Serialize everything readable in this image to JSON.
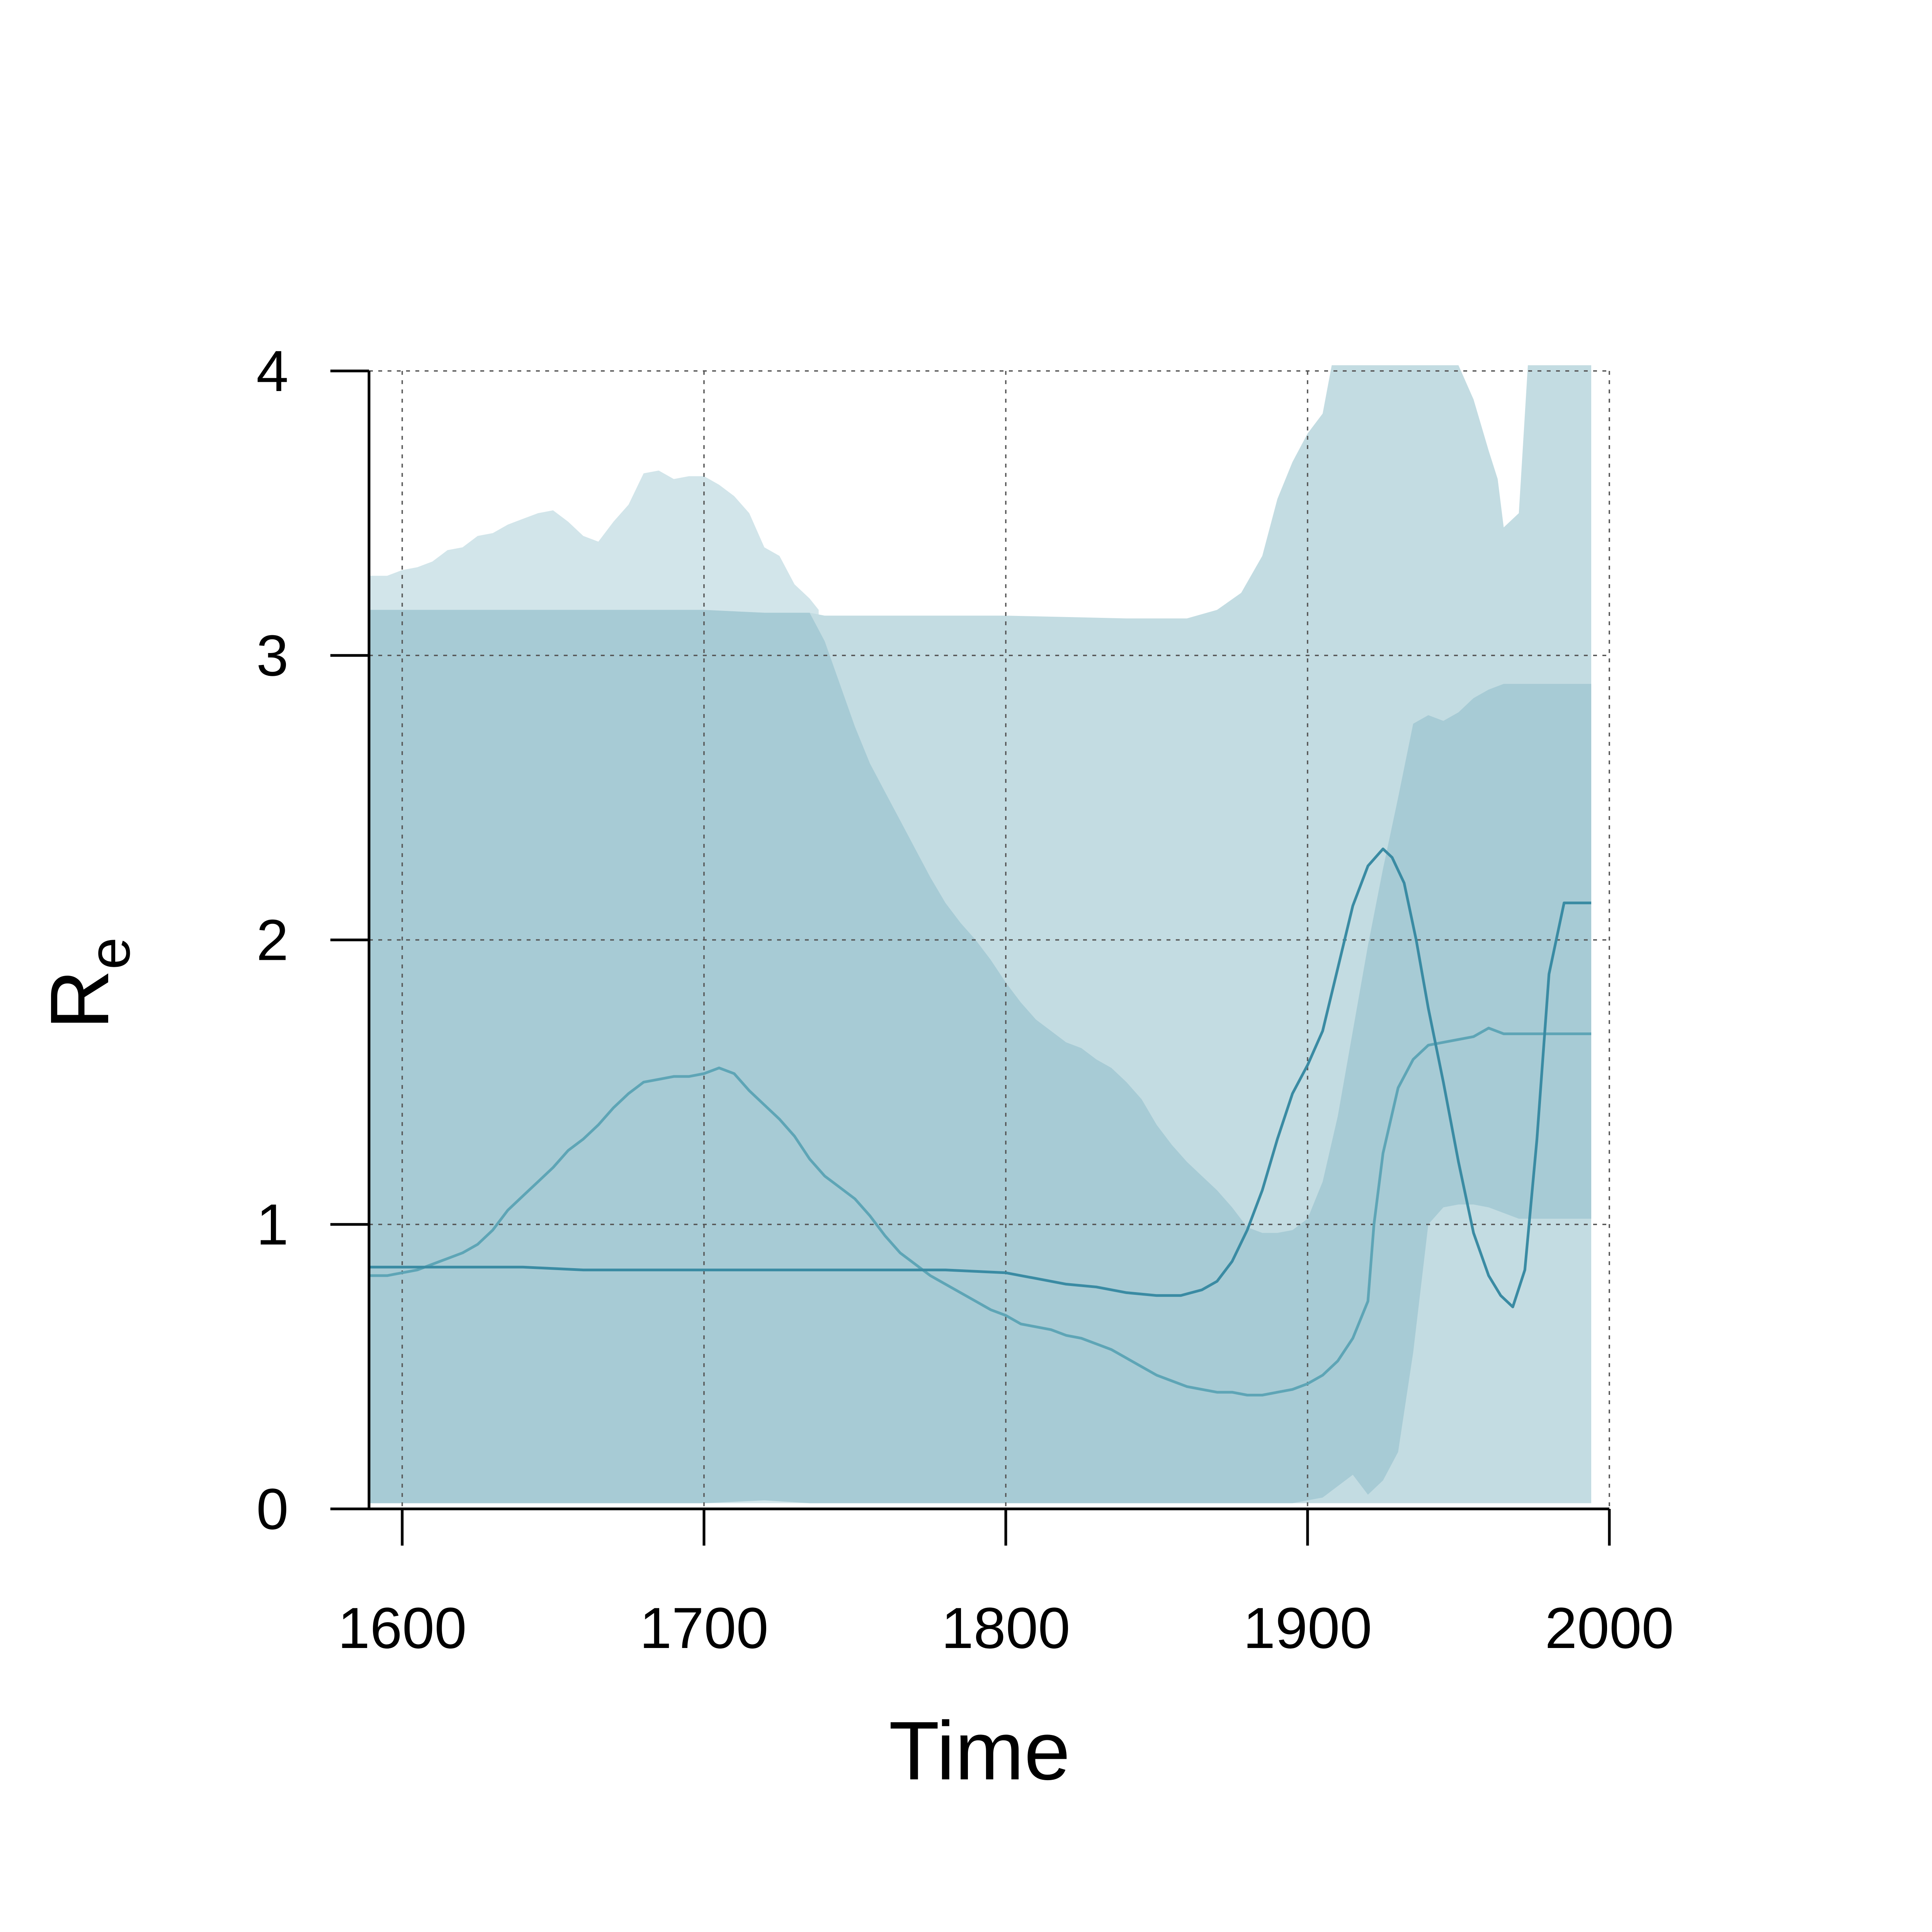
{
  "chart_data": {
    "type": "area",
    "xlabel": "Time",
    "ylabel": "R",
    "ylabel_subscript": "e",
    "xlim": [
      1589,
      2000
    ],
    "ylim": [
      0,
      4
    ],
    "x_ticks": [
      "1600",
      "1700",
      "1800",
      "1900",
      "2000"
    ],
    "y_ticks": [
      "0",
      "1",
      "2",
      "3",
      "4"
    ],
    "grid": true,
    "colors": {
      "band_light": "#d2e5ea",
      "band_mid": "#c3dce2",
      "band_dark": "#a7cbd5",
      "line_dark": "#3a8ba3",
      "line_light": "#5ea5b6",
      "grid": "#555555",
      "axis": "#000000"
    },
    "series": [
      {
        "kind": "band",
        "color_key": "band_light",
        "x": [
          1589,
          1595,
          1600,
          1605,
          1610,
          1615,
          1620,
          1625,
          1630,
          1635,
          1640,
          1645,
          1650,
          1655,
          1660,
          1665,
          1670,
          1675,
          1680,
          1685,
          1690,
          1695,
          1700,
          1705,
          1710,
          1715,
          1720,
          1725,
          1730,
          1735,
          1738
        ],
        "upper": [
          3.28,
          3.28,
          3.3,
          3.31,
          3.33,
          3.37,
          3.38,
          3.42,
          3.43,
          3.46,
          3.48,
          3.5,
          3.51,
          3.47,
          3.42,
          3.4,
          3.47,
          3.53,
          3.64,
          3.65,
          3.62,
          3.63,
          3.63,
          3.6,
          3.56,
          3.5,
          3.38,
          3.35,
          3.25,
          3.2,
          3.16
        ],
        "lower": [
          0.02,
          0.02,
          0.02,
          0.02,
          0.02,
          0.02,
          0.02,
          0.02,
          0.02,
          0.02,
          0.02,
          0.02,
          0.02,
          0.02,
          0.02,
          0.02,
          0.02,
          0.02,
          0.02,
          0.02,
          0.02,
          0.02,
          0.02,
          0.02,
          0.02,
          0.02,
          0.02,
          0.02,
          0.02,
          0.02,
          0.02
        ]
      },
      {
        "kind": "band",
        "color_key": "band_mid",
        "x": [
          1589,
          1600,
          1620,
          1660,
          1700,
          1720,
          1735,
          1740,
          1760,
          1800,
          1840,
          1850,
          1860,
          1870,
          1878,
          1885,
          1890,
          1895,
          1900,
          1905,
          1908,
          1920,
          1940,
          1950,
          1955,
          1960,
          1963,
          1965,
          1970,
          1973,
          1975,
          1990,
          1994
        ],
        "upper": [
          3.16,
          3.16,
          3.16,
          3.16,
          3.16,
          3.15,
          3.15,
          3.14,
          3.14,
          3.14,
          3.13,
          3.13,
          3.13,
          3.16,
          3.22,
          3.35,
          3.55,
          3.68,
          3.78,
          3.85,
          4.02,
          4.02,
          4.02,
          4.02,
          3.9,
          3.72,
          3.62,
          3.45,
          3.5,
          4.02,
          4.02,
          4.02,
          4.02
        ],
        "lower": [
          0.02,
          0.02,
          0.02,
          0.02,
          0.02,
          0.03,
          0.02,
          0.02,
          0.02,
          0.02,
          0.02,
          0.02,
          0.02,
          0.02,
          0.02,
          0.02,
          0.02,
          0.02,
          0.02,
          0.02,
          0.02,
          0.02,
          0.02,
          0.02,
          0.02,
          0.02,
          0.02,
          0.02,
          0.02,
          0.02,
          0.02,
          0.02,
          0.02
        ]
      },
      {
        "kind": "band",
        "color_key": "band_dark",
        "x": [
          1589,
          1600,
          1620,
          1660,
          1700,
          1720,
          1735,
          1740,
          1745,
          1750,
          1755,
          1760,
          1765,
          1770,
          1775,
          1780,
          1785,
          1790,
          1795,
          1800,
          1805,
          1810,
          1815,
          1820,
          1825,
          1830,
          1835,
          1840,
          1845,
          1850,
          1855,
          1860,
          1865,
          1870,
          1875,
          1880,
          1885,
          1890,
          1895,
          1900,
          1905,
          1910,
          1915,
          1920,
          1925,
          1930,
          1935,
          1940,
          1945,
          1950,
          1955,
          1960,
          1965,
          1970,
          1975,
          1980,
          1985,
          1990,
          1994
        ],
        "upper": [
          3.16,
          3.16,
          3.16,
          3.16,
          3.16,
          3.15,
          3.15,
          3.05,
          2.9,
          2.75,
          2.62,
          2.52,
          2.42,
          2.32,
          2.22,
          2.13,
          2.06,
          2.0,
          1.93,
          1.85,
          1.78,
          1.72,
          1.68,
          1.64,
          1.62,
          1.58,
          1.55,
          1.5,
          1.44,
          1.35,
          1.28,
          1.22,
          1.17,
          1.12,
          1.06,
          0.99,
          0.97,
          0.97,
          0.98,
          1.02,
          1.15,
          1.38,
          1.68,
          1.98,
          2.25,
          2.5,
          2.76,
          2.79,
          2.77,
          2.8,
          2.85,
          2.88,
          2.9,
          2.9,
          2.9,
          2.9,
          2.9,
          2.9,
          2.9
        ],
        "lower": [
          0.02,
          0.02,
          0.02,
          0.02,
          0.02,
          0.03,
          0.02,
          0.02,
          0.02,
          0.02,
          0.02,
          0.02,
          0.02,
          0.02,
          0.02,
          0.02,
          0.02,
          0.02,
          0.02,
          0.02,
          0.02,
          0.02,
          0.02,
          0.02,
          0.02,
          0.02,
          0.02,
          0.02,
          0.02,
          0.02,
          0.02,
          0.02,
          0.02,
          0.02,
          0.02,
          0.02,
          0.02,
          0.02,
          0.02,
          0.03,
          0.04,
          0.08,
          0.12,
          0.05,
          0.1,
          0.2,
          0.55,
          1.0,
          1.06,
          1.07,
          1.07,
          1.06,
          1.04,
          1.02,
          1.02,
          1.02,
          1.02,
          1.02,
          1.02
        ]
      },
      {
        "kind": "line",
        "color_key": "line_light",
        "x": [
          1589,
          1595,
          1600,
          1605,
          1610,
          1615,
          1620,
          1625,
          1630,
          1635,
          1640,
          1645,
          1650,
          1655,
          1660,
          1665,
          1670,
          1675,
          1680,
          1685,
          1690,
          1695,
          1700,
          1705,
          1710,
          1715,
          1720,
          1725,
          1730,
          1735,
          1740,
          1745,
          1750,
          1755,
          1760,
          1765,
          1770,
          1775,
          1780,
          1785,
          1790,
          1795,
          1800,
          1805,
          1810,
          1815,
          1820,
          1825,
          1830,
          1835,
          1840,
          1845,
          1850,
          1855,
          1860,
          1865,
          1870,
          1875,
          1880,
          1885,
          1890,
          1895,
          1900,
          1905,
          1910,
          1915,
          1920,
          1922,
          1925,
          1930,
          1935,
          1940,
          1945,
          1950,
          1955,
          1960,
          1965,
          1970,
          1975,
          1980,
          1985,
          1990,
          1994
        ],
        "y": [
          0.82,
          0.82,
          0.83,
          0.84,
          0.86,
          0.88,
          0.9,
          0.93,
          0.98,
          1.05,
          1.1,
          1.15,
          1.2,
          1.26,
          1.3,
          1.35,
          1.41,
          1.46,
          1.5,
          1.51,
          1.52,
          1.52,
          1.53,
          1.55,
          1.53,
          1.47,
          1.42,
          1.37,
          1.31,
          1.23,
          1.17,
          1.13,
          1.09,
          1.03,
          0.96,
          0.9,
          0.86,
          0.82,
          0.79,
          0.76,
          0.73,
          0.7,
          0.68,
          0.65,
          0.64,
          0.63,
          0.61,
          0.6,
          0.58,
          0.56,
          0.53,
          0.5,
          0.47,
          0.45,
          0.43,
          0.42,
          0.41,
          0.41,
          0.4,
          0.4,
          0.41,
          0.42,
          0.44,
          0.47,
          0.52,
          0.6,
          0.73,
          1.0,
          1.25,
          1.48,
          1.58,
          1.63,
          1.64,
          1.65,
          1.66,
          1.69,
          1.67,
          1.67,
          1.67,
          1.67,
          1.67,
          1.67,
          1.67
        ]
      },
      {
        "kind": "line",
        "color_key": "line_dark",
        "x": [
          1589,
          1600,
          1620,
          1640,
          1660,
          1680,
          1700,
          1720,
          1740,
          1760,
          1780,
          1800,
          1805,
          1810,
          1820,
          1830,
          1840,
          1850,
          1858,
          1865,
          1870,
          1875,
          1880,
          1885,
          1890,
          1895,
          1900,
          1905,
          1910,
          1915,
          1920,
          1925,
          1928,
          1932,
          1936,
          1940,
          1945,
          1950,
          1955,
          1960,
          1964,
          1968,
          1972,
          1976,
          1980,
          1985,
          1990,
          1994
        ],
        "y": [
          0.85,
          0.85,
          0.85,
          0.85,
          0.84,
          0.84,
          0.84,
          0.84,
          0.84,
          0.84,
          0.84,
          0.83,
          0.82,
          0.81,
          0.79,
          0.78,
          0.76,
          0.75,
          0.75,
          0.77,
          0.8,
          0.87,
          0.98,
          1.12,
          1.3,
          1.46,
          1.56,
          1.68,
          1.9,
          2.12,
          2.26,
          2.32,
          2.29,
          2.2,
          2.0,
          1.76,
          1.5,
          1.22,
          0.97,
          0.82,
          0.75,
          0.71,
          0.84,
          1.3,
          1.88,
          2.13,
          2.13,
          2.13
        ]
      }
    ]
  }
}
